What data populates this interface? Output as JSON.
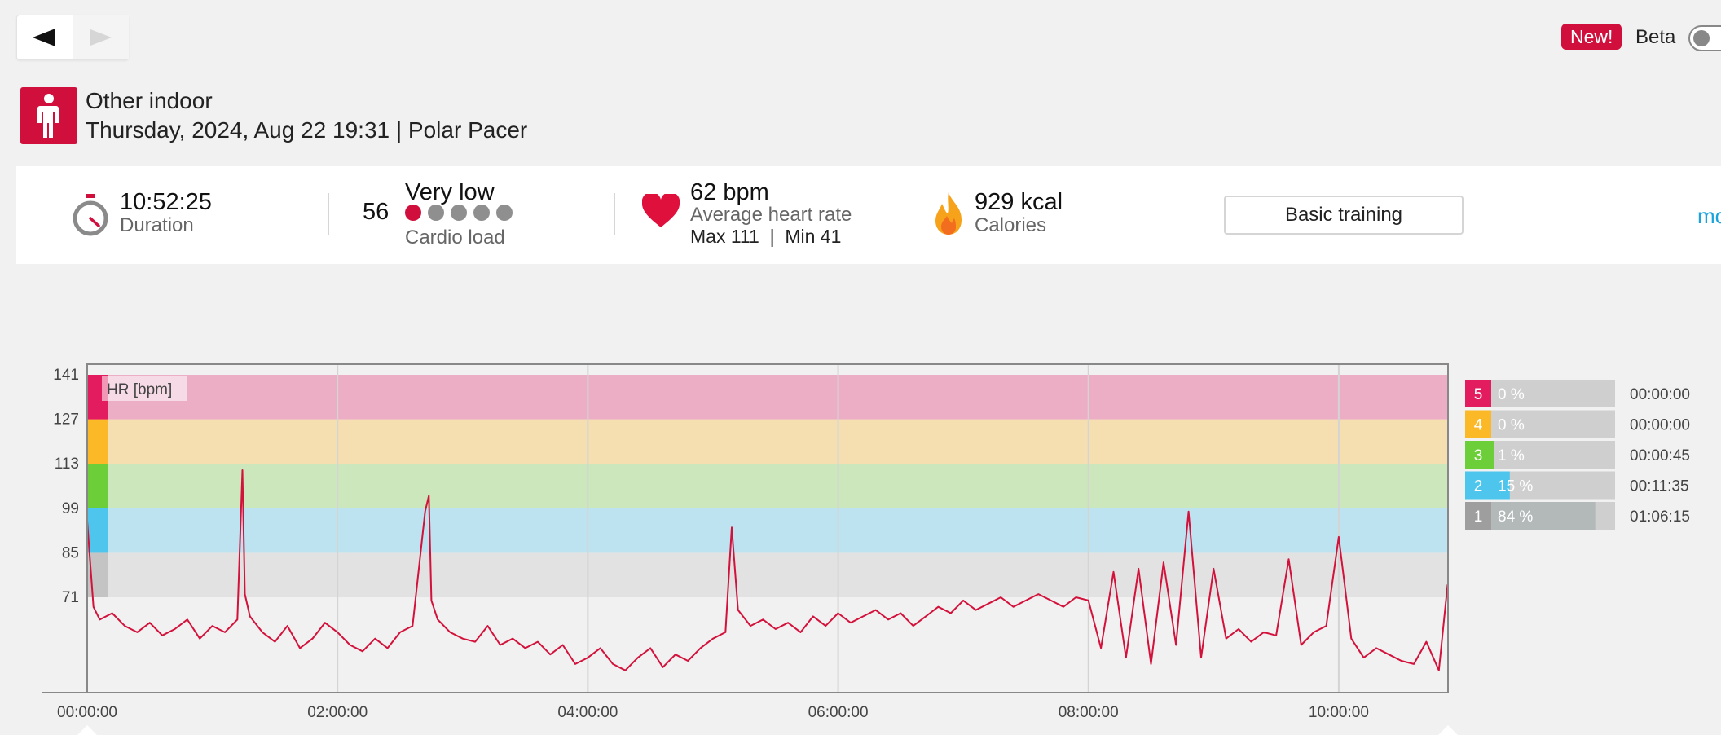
{
  "nav": {
    "back_icon": "left-triangle-icon",
    "forward_icon": "right-triangle-icon"
  },
  "top_right": {
    "new_badge": "New!",
    "beta_label": "Beta",
    "beta_enabled": false
  },
  "header": {
    "sport_icon": "person-standing-icon",
    "sport_name": "Other indoor",
    "session_info": "Thursday, 2024, Aug 22 19:31 | Polar Pacer"
  },
  "summary": {
    "duration": {
      "value": "10:52:25",
      "label": "Duration",
      "icon": "stopwatch-icon"
    },
    "cardio_load": {
      "number": "56",
      "level": "Very low",
      "label": "Cardio load",
      "dots_filled": 1,
      "dots_total": 5
    },
    "heart_rate": {
      "value": "62 bpm",
      "label": "Average heart rate",
      "max_min": "Max 111  |  Min 41",
      "icon": "heart-icon"
    },
    "calories": {
      "value": "929 kcal",
      "label": "Calories",
      "icon": "flame-icon"
    },
    "basic_training": "Basic training",
    "more_link": "mo"
  },
  "colors": {
    "brand_red": "#d10f3c",
    "zone5": "#e31c5f",
    "zone4": "#fbb827",
    "zone3": "#6ccf3a",
    "zone2": "#4dc5ed",
    "zone1": "#c4c4c4",
    "hr_line": "#d3123c"
  },
  "chart_data": {
    "type": "line",
    "title": "",
    "series_label": "HR [bpm]",
    "ylim": [
      41,
      141
    ],
    "y_ticks": [
      "141",
      "127",
      "113",
      "99",
      "85",
      "71"
    ],
    "x_ticks": [
      "00:00:00",
      "02:00:00",
      "04:00:00",
      "06:00:00",
      "08:00:00",
      "10:00:00"
    ],
    "x_duration_hours": 10.873,
    "zone_bounds": [
      71,
      85,
      99,
      113,
      127,
      141
    ],
    "series": [
      {
        "name": "HR [bpm]",
        "x_hours": [
          0,
          0.05,
          0.1,
          0.2,
          0.3,
          0.4,
          0.5,
          0.6,
          0.7,
          0.8,
          0.9,
          1.0,
          1.1,
          1.2,
          1.24,
          1.26,
          1.3,
          1.4,
          1.5,
          1.6,
          1.7,
          1.8,
          1.9,
          2.0,
          2.1,
          2.2,
          2.3,
          2.4,
          2.5,
          2.6,
          2.7,
          2.73,
          2.75,
          2.8,
          2.9,
          3.0,
          3.1,
          3.2,
          3.3,
          3.4,
          3.5,
          3.6,
          3.7,
          3.8,
          3.9,
          4.0,
          4.1,
          4.2,
          4.3,
          4.4,
          4.5,
          4.6,
          4.7,
          4.8,
          4.9,
          5.0,
          5.1,
          5.15,
          5.2,
          5.3,
          5.4,
          5.5,
          5.6,
          5.7,
          5.8,
          5.9,
          6.0,
          6.1,
          6.2,
          6.3,
          6.4,
          6.5,
          6.6,
          6.7,
          6.8,
          6.9,
          7.0,
          7.1,
          7.2,
          7.3,
          7.4,
          7.5,
          7.6,
          7.7,
          7.8,
          7.9,
          8.0,
          8.1,
          8.2,
          8.3,
          8.4,
          8.5,
          8.6,
          8.7,
          8.8,
          8.9,
          9.0,
          9.1,
          9.2,
          9.3,
          9.4,
          9.5,
          9.6,
          9.7,
          9.8,
          9.9,
          10.0,
          10.1,
          10.2,
          10.3,
          10.4,
          10.5,
          10.6,
          10.7,
          10.8,
          10.87
        ],
        "values": [
          95,
          68,
          64,
          66,
          62,
          60,
          63,
          59,
          61,
          64,
          58,
          62,
          60,
          64,
          111,
          72,
          65,
          60,
          57,
          62,
          55,
          58,
          63,
          60,
          56,
          54,
          58,
          55,
          60,
          62,
          98,
          103,
          70,
          64,
          60,
          58,
          57,
          62,
          56,
          58,
          55,
          57,
          53,
          56,
          50,
          52,
          55,
          50,
          48,
          52,
          55,
          49,
          53,
          51,
          55,
          58,
          60,
          93,
          67,
          62,
          64,
          61,
          63,
          60,
          65,
          62,
          66,
          63,
          65,
          67,
          64,
          66,
          62,
          65,
          68,
          66,
          70,
          67,
          69,
          71,
          68,
          70,
          72,
          70,
          68,
          71,
          70,
          55,
          79,
          52,
          80,
          50,
          82,
          56,
          98,
          52,
          80,
          58,
          61,
          57,
          60,
          59,
          83,
          56,
          60,
          62,
          90,
          58,
          52,
          55,
          53,
          51,
          50,
          57,
          48,
          75
        ]
      }
    ],
    "zone_table": [
      {
        "zone": "5",
        "percent": "0 %",
        "time": "00:00:00",
        "fraction": 0.0
      },
      {
        "zone": "4",
        "percent": "0 %",
        "time": "00:00:00",
        "fraction": 0.0
      },
      {
        "zone": "3",
        "percent": "1 %",
        "time": "00:00:45",
        "fraction": 0.01
      },
      {
        "zone": "2",
        "percent": "15 %",
        "time": "00:11:35",
        "fraction": 0.15
      },
      {
        "zone": "1",
        "percent": "84 %",
        "time": "01:06:15",
        "fraction": 0.84
      }
    ]
  }
}
